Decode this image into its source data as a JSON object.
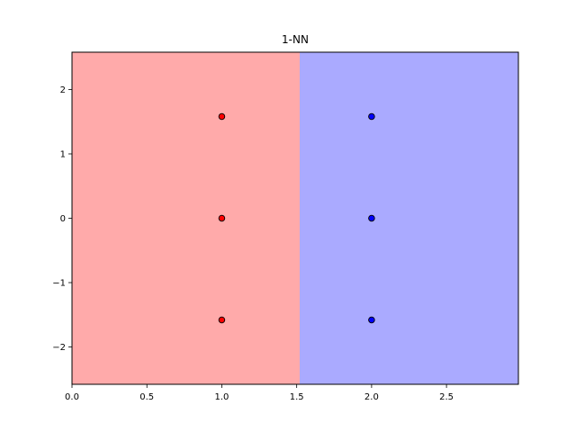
{
  "chart_data": {
    "type": "scatter",
    "title": "1-NN",
    "xlabel": "",
    "ylabel": "",
    "xlim": [
      0.0,
      2.98
    ],
    "ylim": [
      -2.58,
      2.58
    ],
    "x_ticks": [
      0.0,
      0.5,
      1.0,
      1.5,
      2.0,
      2.5
    ],
    "x_tick_labels": [
      "0.0",
      "0.5",
      "1.0",
      "1.5",
      "2.0",
      "2.5"
    ],
    "y_ticks": [
      -2,
      -1,
      0,
      1,
      2
    ],
    "y_tick_labels": [
      "−2",
      "−1",
      "0",
      "1",
      "2"
    ],
    "grid": false,
    "decision_regions": [
      {
        "x_from": 0.0,
        "x_to": 1.52,
        "color": "#ffaaaa"
      },
      {
        "x_from": 1.52,
        "x_to": 2.98,
        "color": "#aaaaff"
      }
    ],
    "series": [
      {
        "color": "#ff0000",
        "points": [
          [
            1.0,
            1.58
          ],
          [
            1.0,
            0.0
          ],
          [
            1.0,
            -1.58
          ]
        ]
      },
      {
        "color": "#0000ff",
        "points": [
          [
            2.0,
            1.58
          ],
          [
            2.0,
            0.0
          ],
          [
            2.0,
            -1.58
          ]
        ]
      }
    ]
  }
}
